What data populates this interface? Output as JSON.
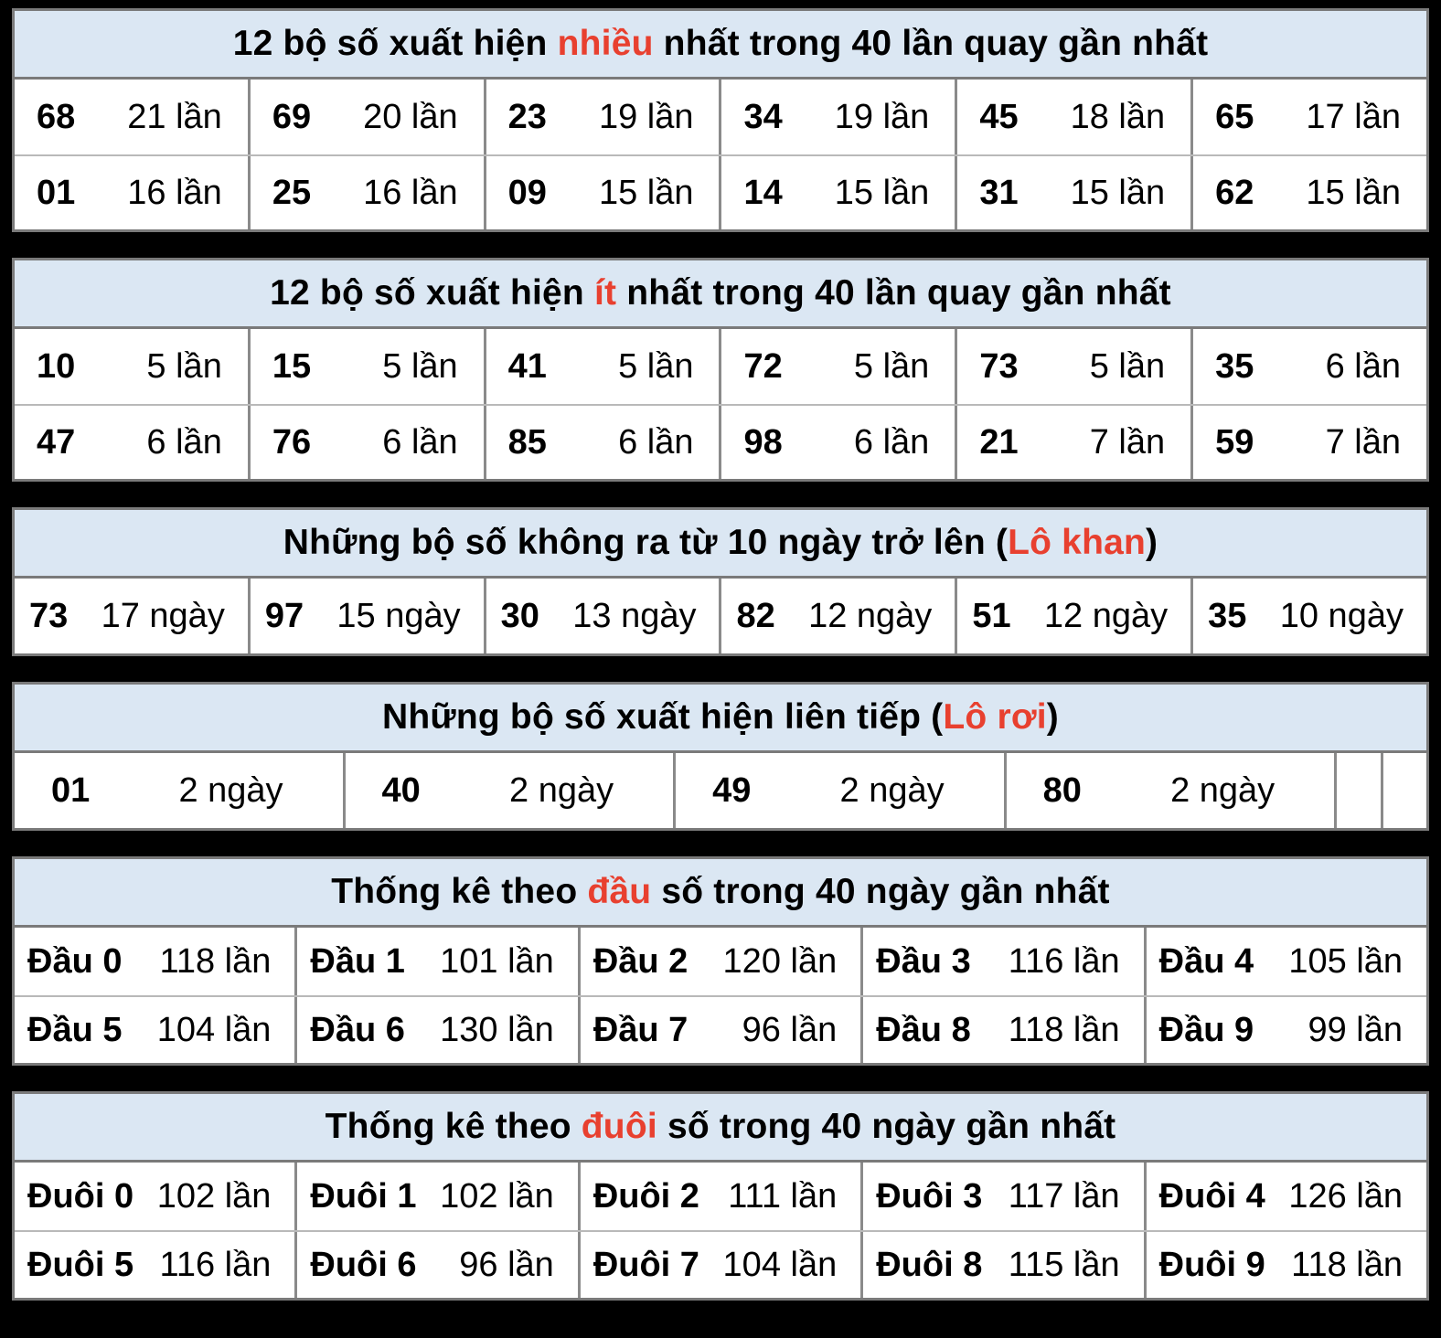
{
  "colors": {
    "page_bg": "#000000",
    "table_bg": "#ffffff",
    "header_bg": "#dbe7f3",
    "highlight_red": "#e8402f",
    "border_gray": "#7a7a7a",
    "text": "#000000"
  },
  "tables": [
    {
      "id": "most-frequent",
      "header": {
        "prefix": "12 bộ số xuất hiện ",
        "highlight": "nhiều",
        "suffix": " nhất trong 40 lần quay gần nhất"
      },
      "rows": [
        [
          {
            "number": "68",
            "count": "21 lần"
          },
          {
            "number": "69",
            "count": "20 lần"
          },
          {
            "number": "23",
            "count": "19 lần"
          },
          {
            "number": "34",
            "count": "19 lần"
          },
          {
            "number": "45",
            "count": "18 lần"
          },
          {
            "number": "65",
            "count": "17 lần"
          }
        ],
        [
          {
            "number": "01",
            "count": "16 lần"
          },
          {
            "number": "25",
            "count": "16 lần"
          },
          {
            "number": "09",
            "count": "15 lần"
          },
          {
            "number": "14",
            "count": "15 lần"
          },
          {
            "number": "31",
            "count": "15 lần"
          },
          {
            "number": "62",
            "count": "15 lần"
          }
        ]
      ]
    },
    {
      "id": "least-frequent",
      "header": {
        "prefix": "12 bộ số xuất hiện ",
        "highlight": "ít",
        "suffix": " nhất trong 40 lần quay gần nhất"
      },
      "rows": [
        [
          {
            "number": "10",
            "count": "5 lần"
          },
          {
            "number": "15",
            "count": "5 lần"
          },
          {
            "number": "41",
            "count": "5 lần"
          },
          {
            "number": "72",
            "count": "5 lần"
          },
          {
            "number": "73",
            "count": "5 lần"
          },
          {
            "number": "35",
            "count": "6 lần"
          }
        ],
        [
          {
            "number": "47",
            "count": "6 lần"
          },
          {
            "number": "76",
            "count": "6 lần"
          },
          {
            "number": "85",
            "count": "6 lần"
          },
          {
            "number": "98",
            "count": "6 lần"
          },
          {
            "number": "21",
            "count": "7 lần"
          },
          {
            "number": "59",
            "count": "7 lần"
          }
        ]
      ]
    },
    {
      "id": "lo-khan",
      "header": {
        "prefix": "Những bộ số không ra từ 10 ngày trở lên (",
        "highlight": "Lô khan",
        "suffix": ")"
      },
      "rows": [
        [
          {
            "number": "73",
            "count": "17 ngày"
          },
          {
            "number": "97",
            "count": "15 ngày"
          },
          {
            "number": "30",
            "count": "13 ngày"
          },
          {
            "number": "82",
            "count": "12 ngày"
          },
          {
            "number": "51",
            "count": "12 ngày"
          },
          {
            "number": "35",
            "count": "10 ngày"
          }
        ]
      ]
    },
    {
      "id": "lo-roi",
      "header": {
        "prefix": "Những bộ số xuất hiện liên tiếp (",
        "highlight": "Lô rơi",
        "suffix": ")"
      },
      "rows": [
        [
          {
            "number": "01",
            "count": "2 ngày"
          },
          {
            "number": "40",
            "count": "2 ngày"
          },
          {
            "number": "49",
            "count": "2 ngày"
          },
          {
            "number": "80",
            "count": "2 ngày"
          }
        ]
      ]
    },
    {
      "id": "dau-so",
      "header": {
        "prefix": "Thống kê theo ",
        "highlight": "đầu",
        "suffix": " số trong 40 ngày gần nhất"
      },
      "rows": [
        [
          {
            "label": "Đầu 0",
            "count": "118 lần"
          },
          {
            "label": "Đầu 1",
            "count": "101 lần"
          },
          {
            "label": "Đầu 2",
            "count": "120 lần"
          },
          {
            "label": "Đầu 3",
            "count": "116 lần"
          },
          {
            "label": "Đầu 4",
            "count": "105 lần"
          }
        ],
        [
          {
            "label": "Đầu 5",
            "count": "104 lần"
          },
          {
            "label": "Đầu 6",
            "count": "130 lần"
          },
          {
            "label": "Đầu 7",
            "count": "96 lần"
          },
          {
            "label": "Đầu 8",
            "count": "118 lần"
          },
          {
            "label": "Đầu 9",
            "count": "99 lần"
          }
        ]
      ]
    },
    {
      "id": "duoi-so",
      "header": {
        "prefix": "Thống kê theo ",
        "highlight": "đuôi",
        "suffix": " số trong 40 ngày gần nhất"
      },
      "rows": [
        [
          {
            "label": "Đuôi 0",
            "count": "102 lần"
          },
          {
            "label": "Đuôi 1",
            "count": "102 lần"
          },
          {
            "label": "Đuôi 2",
            "count": "111 lần"
          },
          {
            "label": "Đuôi 3",
            "count": "117 lần"
          },
          {
            "label": "Đuôi 4",
            "count": "126 lần"
          }
        ],
        [
          {
            "label": "Đuôi 5",
            "count": "116 lần"
          },
          {
            "label": "Đuôi 6",
            "count": "96 lần"
          },
          {
            "label": "Đuôi 7",
            "count": "104 lần"
          },
          {
            "label": "Đuôi 8",
            "count": "115 lần"
          },
          {
            "label": "Đuôi 9",
            "count": "118 lần"
          }
        ]
      ]
    }
  ],
  "chart_data": [
    {
      "type": "table",
      "title": "12 bộ số xuất hiện nhiều nhất trong 40 lần quay gần nhất",
      "unit": "lần",
      "rows": [
        [
          "68",
          21
        ],
        [
          "69",
          20
        ],
        [
          "23",
          19
        ],
        [
          "34",
          19
        ],
        [
          "45",
          18
        ],
        [
          "65",
          17
        ],
        [
          "01",
          16
        ],
        [
          "25",
          16
        ],
        [
          "09",
          15
        ],
        [
          "14",
          15
        ],
        [
          "31",
          15
        ],
        [
          "62",
          15
        ]
      ]
    },
    {
      "type": "table",
      "title": "12 bộ số xuất hiện ít nhất trong 40 lần quay gần nhất",
      "unit": "lần",
      "rows": [
        [
          "10",
          5
        ],
        [
          "15",
          5
        ],
        [
          "41",
          5
        ],
        [
          "72",
          5
        ],
        [
          "73",
          5
        ],
        [
          "35",
          6
        ],
        [
          "47",
          6
        ],
        [
          "76",
          6
        ],
        [
          "85",
          6
        ],
        [
          "98",
          6
        ],
        [
          "21",
          7
        ],
        [
          "59",
          7
        ]
      ]
    },
    {
      "type": "table",
      "title": "Những bộ số không ra từ 10 ngày trở lên (Lô khan)",
      "unit": "ngày",
      "rows": [
        [
          "73",
          17
        ],
        [
          "97",
          15
        ],
        [
          "30",
          13
        ],
        [
          "82",
          12
        ],
        [
          "51",
          12
        ],
        [
          "35",
          10
        ]
      ]
    },
    {
      "type": "table",
      "title": "Những bộ số xuất hiện liên tiếp (Lô rơi)",
      "unit": "ngày",
      "rows": [
        [
          "01",
          2
        ],
        [
          "40",
          2
        ],
        [
          "49",
          2
        ],
        [
          "80",
          2
        ]
      ]
    },
    {
      "type": "table",
      "title": "Thống kê theo đầu số trong 40 ngày gần nhất",
      "unit": "lần",
      "rows": [
        [
          "Đầu 0",
          118
        ],
        [
          "Đầu 1",
          101
        ],
        [
          "Đầu 2",
          120
        ],
        [
          "Đầu 3",
          116
        ],
        [
          "Đầu 4",
          105
        ],
        [
          "Đầu 5",
          104
        ],
        [
          "Đầu 6",
          130
        ],
        [
          "Đầu 7",
          96
        ],
        [
          "Đầu 8",
          118
        ],
        [
          "Đầu 9",
          99
        ]
      ]
    },
    {
      "type": "table",
      "title": "Thống kê theo đuôi số trong 40 ngày gần nhất",
      "unit": "lần",
      "rows": [
        [
          "Đuôi 0",
          102
        ],
        [
          "Đuôi 1",
          102
        ],
        [
          "Đuôi 2",
          111
        ],
        [
          "Đuôi 3",
          117
        ],
        [
          "Đuôi 4",
          126
        ],
        [
          "Đuôi 5",
          116
        ],
        [
          "Đuôi 6",
          96
        ],
        [
          "Đuôi 7",
          104
        ],
        [
          "Đuôi 8",
          115
        ],
        [
          "Đuôi 9",
          118
        ]
      ]
    }
  ]
}
